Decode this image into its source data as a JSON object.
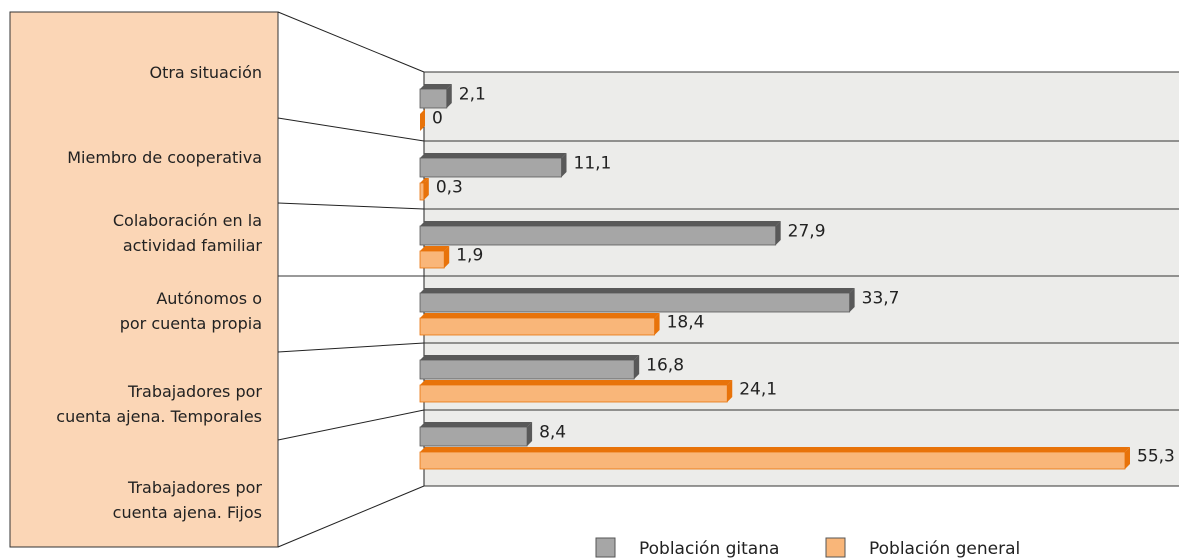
{
  "chart_data": {
    "type": "bar",
    "orientation": "horizontal",
    "categories": [
      "Otra situación",
      "Miembro de cooperativa",
      "Colaboración en la\nactividad familiar",
      "Autónomos o\npor cuenta propia",
      "Trabajadores por\ncuenta ajena. Temporales",
      "Trabajadores por\ncuenta ajena. Fijos"
    ],
    "series": [
      {
        "name": "Población gitana",
        "color": "#a6a6a6",
        "top_color": "#595959",
        "values": [
          2.1,
          11.1,
          27.9,
          33.7,
          16.8,
          8.4
        ],
        "value_labels": [
          "2,1",
          "11,1",
          "27,9",
          "33,7",
          "16,8",
          "8,4"
        ]
      },
      {
        "name": "Población general",
        "color": "#f9b679",
        "top_color": "#e8730a",
        "values": [
          0,
          0.3,
          1.9,
          18.4,
          24.1,
          55.3
        ],
        "value_labels": [
          "0",
          "0,3",
          "1,9",
          "18,4",
          "24,1",
          "55,3"
        ]
      }
    ]
  }
}
